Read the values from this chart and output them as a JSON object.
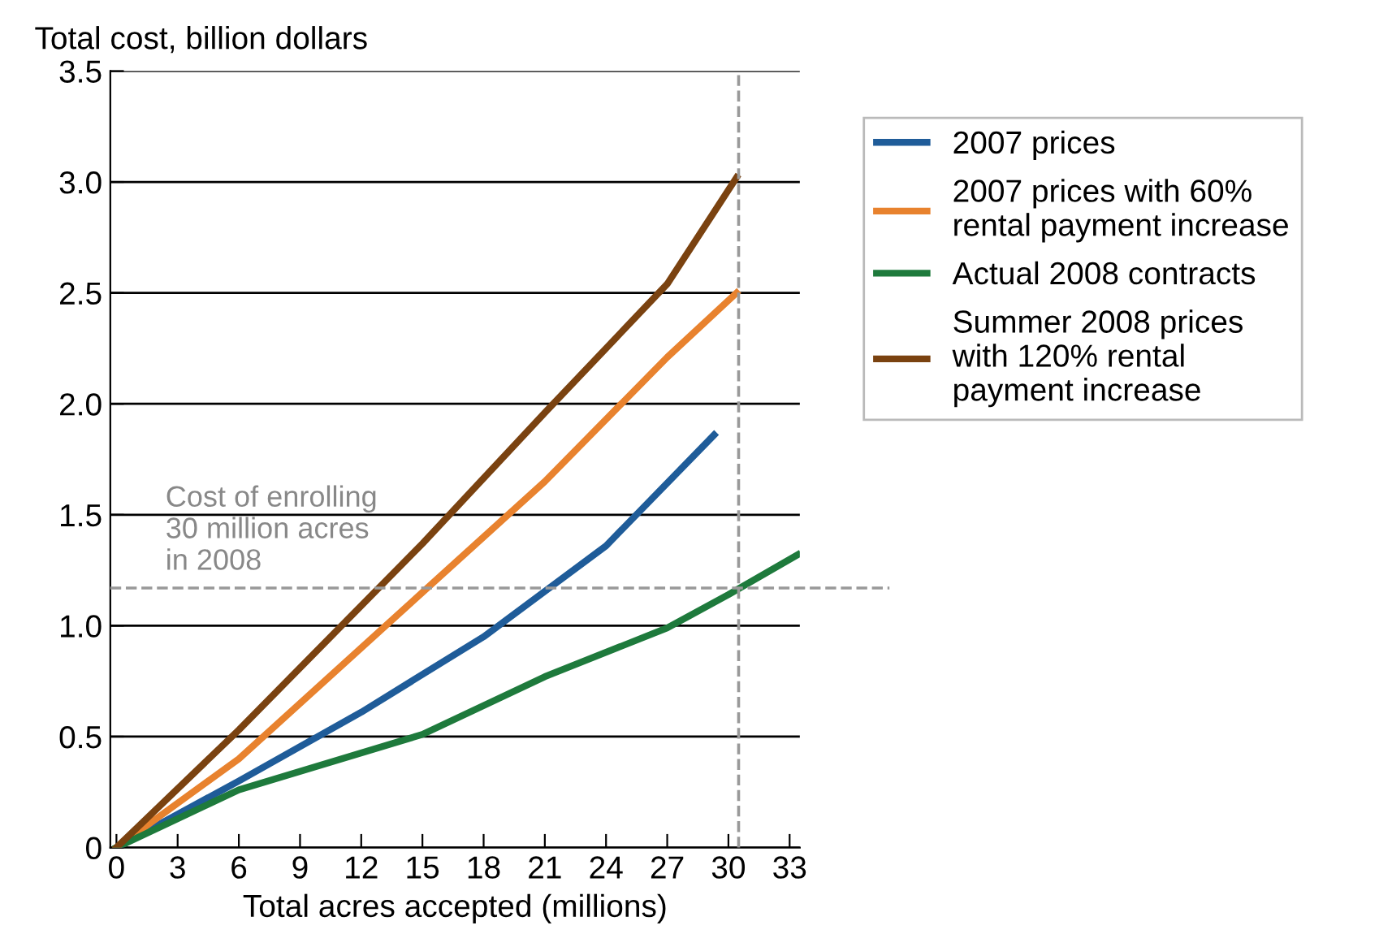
{
  "chart_data": {
    "type": "line",
    "ylabel": "Total cost, billion dollars",
    "xlabel": "Total acres accepted (millions)",
    "xlim": [
      -0.3,
      33.5
    ],
    "xticks": [
      0,
      3,
      6,
      9,
      12,
      15,
      18,
      21,
      24,
      27,
      30,
      33
    ],
    "ylim": [
      0,
      3.5
    ],
    "yticks": [
      0,
      {
        "value": 0.5,
        "label": "0.5"
      },
      {
        "value": 1,
        "label": "1.0"
      },
      {
        "value": 1.5,
        "label": "1.5"
      },
      {
        "value": 2,
        "label": "2.0"
      },
      {
        "value": 2.5,
        "label": "2.5"
      },
      {
        "value": 3,
        "label": "3.0"
      },
      {
        "value": 3.5,
        "label": "3.5"
      }
    ],
    "grid": "y",
    "legend": "right",
    "line_style": "solid",
    "marker": "none",
    "series": [
      {
        "name": "2007 prices",
        "color": "#1f5c99",
        "x": [
          0,
          6,
          12,
          18,
          24,
          29.3
        ],
        "values": [
          0,
          0.3,
          0.61,
          0.95,
          1.36,
          1.86
        ]
      },
      {
        "name": "2007 prices with 60%\nrental payment increase",
        "color": "#e8822e",
        "x": [
          0,
          6,
          15,
          21,
          27,
          30.4
        ],
        "values": [
          0,
          0.4,
          1.15,
          1.65,
          2.21,
          2.5
        ]
      },
      {
        "name": "Actual 2008 contracts",
        "color": "#1e7a3c",
        "x": [
          0,
          6,
          15,
          21,
          27,
          30,
          33.4
        ],
        "values": [
          0,
          0.26,
          0.51,
          0.77,
          0.99,
          1.14,
          1.32
        ]
      },
      {
        "name": "Summer 2008 prices\nwith 120% rental\npayment increase",
        "color": "#7a4210",
        "x": [
          0,
          6,
          15,
          21,
          27,
          30.4
        ],
        "values": [
          0,
          0.53,
          1.37,
          1.96,
          2.54,
          3.02
        ]
      }
    ],
    "ref_lines": [
      {
        "axis": "y",
        "value": 1.17,
        "color": "#999999",
        "line_style": "dashed"
      },
      {
        "axis": "x",
        "value": 30.5,
        "color": "#999999",
        "line_style": "dashed"
      }
    ],
    "annotations": [
      "Cost of enrolling\n30 million acres\nin 2008"
    ]
  }
}
